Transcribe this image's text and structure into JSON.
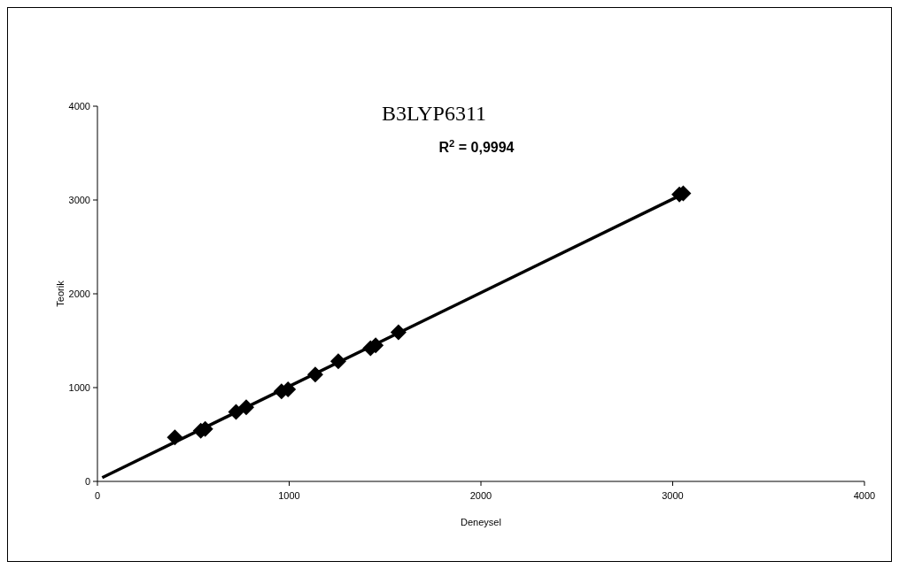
{
  "chart_data": {
    "type": "scatter",
    "title": "B3LYP6311",
    "xlabel": "Deneysel",
    "ylabel": "Teorik",
    "annotations": [
      "R$^{2}$ = 0,9994"
    ],
    "xlim": [
      0,
      4000
    ],
    "xticks": [
      0,
      1000,
      2000,
      3000,
      4000
    ],
    "ylim": [
      0,
      4000
    ],
    "yticks": [
      0,
      1000,
      2000,
      3000,
      4000
    ],
    "grid": false,
    "marker": "diamond",
    "series": [
      {
        "color": "#000000",
        "x": [
          404,
          539,
          562,
          723,
          776,
          960,
          994,
          1136,
          1256,
          1424,
          1451,
          1570,
          3035,
          3055
        ],
        "values": [
          470,
          540,
          560,
          740,
          790,
          960,
          980,
          1140,
          1280,
          1420,
          1450,
          1590,
          3060,
          3070
        ]
      },
      {
        "type": "line",
        "color": "#000000",
        "marker": "none",
        "line_style": "solid",
        "x": [
          25,
          3060
        ],
        "values": [
          40,
          3070
        ]
      }
    ]
  }
}
